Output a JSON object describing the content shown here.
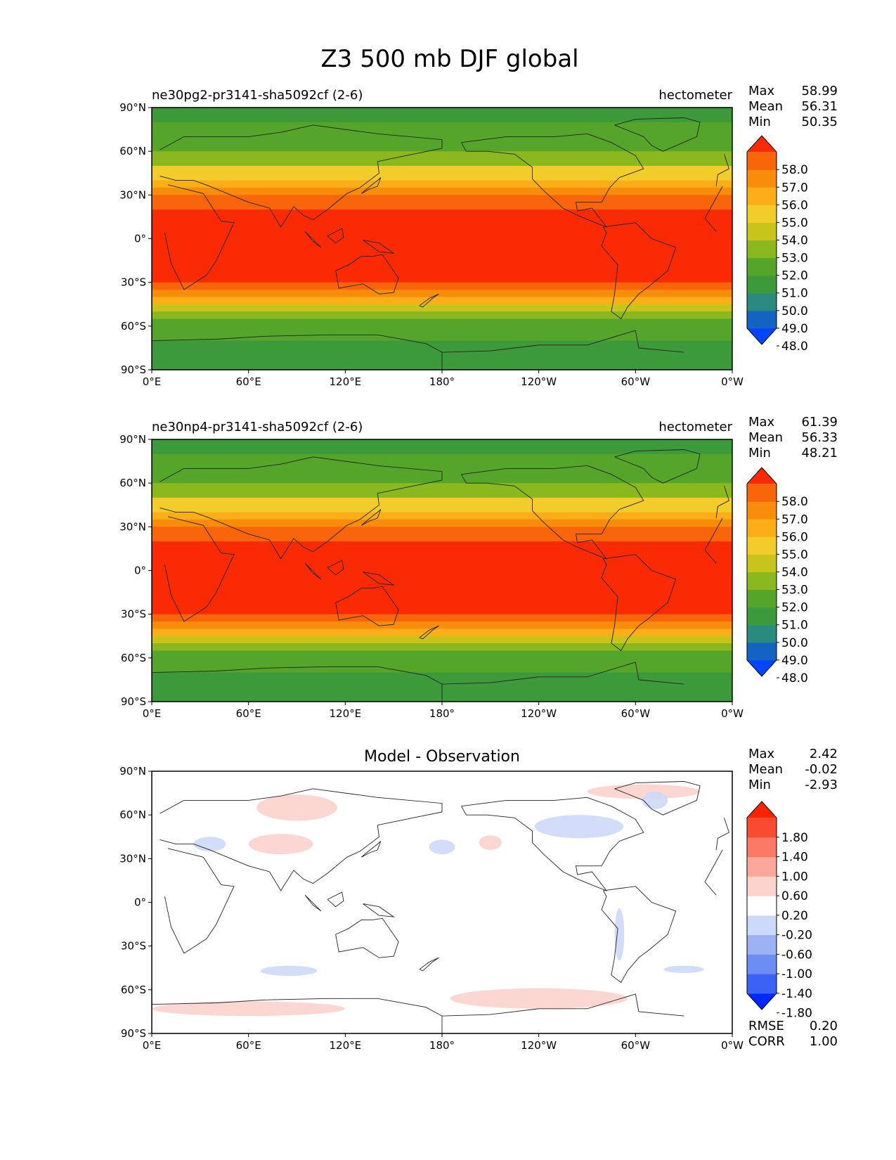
{
  "figure": {
    "title": "Z3 500 mb DJF global"
  },
  "chart_data": [
    {
      "type": "heatmap",
      "title": "ne30pg2-pr3141-sha5092cf (2-6)",
      "units": "hectometer",
      "stats": {
        "max_label": "Max",
        "max": "58.99",
        "mean_label": "Mean",
        "mean": "56.31",
        "min_label": "Min",
        "min": "50.35"
      },
      "xticks": [
        "0°E",
        "60°E",
        "120°E",
        "180°",
        "120°W",
        "60°W",
        "0°W"
      ],
      "yticks": [
        "90°N",
        "60°N",
        "30°N",
        "0°",
        "30°S",
        "60°S",
        "90°S"
      ],
      "colorbar": {
        "labels": [
          "58.0",
          "57.0",
          "56.0",
          "55.0",
          "54.0",
          "53.0",
          "52.0",
          "51.0",
          "50.0",
          "49.0",
          "48.0"
        ],
        "colors": [
          "#0045ff",
          "#1463c2",
          "#2a8a80",
          "#3c9a3a",
          "#55a52a",
          "#8ab81e",
          "#c8c41c",
          "#f2cc2a",
          "#fcae18",
          "#f98c0a",
          "#f9650a",
          "#fa2b04"
        ]
      },
      "zonal_profile": {
        "lat": [
          90,
          80,
          70,
          60,
          50,
          40,
          35,
          30,
          20,
          10,
          0,
          -10,
          -20,
          -30,
          -35,
          -40,
          -45,
          -50,
          -55,
          -60,
          -70,
          -80,
          -90
        ],
        "value": [
          50.6,
          50.9,
          51.3,
          52.1,
          53.5,
          55.4,
          56.3,
          57.2,
          58.3,
          58.6,
          58.6,
          58.6,
          58.4,
          58.0,
          57.0,
          55.7,
          54.3,
          53.0,
          52.2,
          51.5,
          50.8,
          50.6,
          50.6
        ]
      }
    },
    {
      "type": "heatmap",
      "title": "ne30np4-pr3141-sha5092cf (2-6)",
      "units": "hectometer",
      "stats": {
        "max_label": "Max",
        "max": "61.39",
        "mean_label": "Mean",
        "mean": "56.33",
        "min_label": "Min",
        "min": "48.21"
      },
      "xticks": [
        "0°E",
        "60°E",
        "120°E",
        "180°",
        "120°W",
        "60°W",
        "0°W"
      ],
      "yticks": [
        "90°N",
        "60°N",
        "30°N",
        "0°",
        "30°S",
        "60°S",
        "90°S"
      ],
      "colorbar": {
        "labels": [
          "58.0",
          "57.0",
          "56.0",
          "55.0",
          "54.0",
          "53.0",
          "52.0",
          "51.0",
          "50.0",
          "49.0",
          "48.0"
        ],
        "colors": [
          "#0045ff",
          "#1463c2",
          "#2a8a80",
          "#3c9a3a",
          "#55a52a",
          "#8ab81e",
          "#c8c41c",
          "#f2cc2a",
          "#fcae18",
          "#f98c0a",
          "#f9650a",
          "#fa2b04"
        ]
      },
      "zonal_profile": {
        "lat": [
          90,
          80,
          70,
          60,
          50,
          40,
          35,
          30,
          20,
          10,
          0,
          -10,
          -20,
          -30,
          -35,
          -40,
          -45,
          -50,
          -55,
          -60,
          -70,
          -80,
          -90
        ],
        "value": [
          50.7,
          51.0,
          51.4,
          52.2,
          53.6,
          55.5,
          56.4,
          57.3,
          58.3,
          58.6,
          58.6,
          58.6,
          58.4,
          58.0,
          57.0,
          55.7,
          54.3,
          53.0,
          52.2,
          51.5,
          51.0,
          50.8,
          50.7
        ]
      }
    },
    {
      "type": "heatmap",
      "title": "Model - Observation",
      "stats": {
        "max_label": "Max",
        "max": "2.42",
        "mean_label": "Mean",
        "mean": "-0.02",
        "min_label": "Min",
        "min": "-2.93"
      },
      "metrics": {
        "rmse_label": "RMSE",
        "rmse": "0.20",
        "corr_label": "CORR",
        "corr": "1.00"
      },
      "xticks": [
        "0°E",
        "60°E",
        "120°E",
        "180°",
        "120°W",
        "60°W",
        "0°W"
      ],
      "yticks": [
        "90°N",
        "60°N",
        "30°N",
        "0°",
        "30°S",
        "60°S",
        "90°S"
      ],
      "colorbar": {
        "labels": [
          "1.80",
          "1.40",
          "1.00",
          "0.60",
          "0.20",
          "-0.20",
          "-0.60",
          "-1.00",
          "-1.40",
          "-1.80"
        ],
        "colors": [
          "#0028ff",
          "#3a62f5",
          "#6c8df2",
          "#9db2f5",
          "#cdd9f8",
          "#ffffff",
          "#fcd3cd",
          "#fba79b",
          "#fa7a66",
          "#f94b30",
          "#fa2400"
        ]
      },
      "anomalies": [
        {
          "kind": "negative",
          "lon": 36,
          "lat": 40,
          "lon_span": 20,
          "lat_span": 10
        },
        {
          "kind": "positive",
          "lon": 80,
          "lat": 40,
          "lon_span": 40,
          "lat_span": 14
        },
        {
          "kind": "positive",
          "lon": 90,
          "lat": 65,
          "lon_span": 50,
          "lat_span": 18
        },
        {
          "kind": "negative",
          "lon": 180,
          "lat": 38,
          "lon_span": 16,
          "lat_span": 10
        },
        {
          "kind": "positive",
          "lon": 210,
          "lat": 41,
          "lon_span": 14,
          "lat_span": 10
        },
        {
          "kind": "negative",
          "lon": 265,
          "lat": 52,
          "lon_span": 55,
          "lat_span": 16
        },
        {
          "kind": "positive",
          "lon": 305,
          "lat": 76,
          "lon_span": 70,
          "lat_span": 10
        },
        {
          "kind": "negative",
          "lon": 312,
          "lat": 70,
          "lon_span": 16,
          "lat_span": 12
        },
        {
          "kind": "negative",
          "lon": 290,
          "lat": -22,
          "lon_span": 6,
          "lat_span": 36
        },
        {
          "kind": "negative",
          "lon": 85,
          "lat": -47,
          "lon_span": 35,
          "lat_span": 7
        },
        {
          "kind": "negative",
          "lon": 330,
          "lat": -46,
          "lon_span": 25,
          "lat_span": 5
        },
        {
          "kind": "positive",
          "lon": 240,
          "lat": -66,
          "lon_span": 110,
          "lat_span": 14
        },
        {
          "kind": "positive",
          "lon": 60,
          "lat": -73,
          "lon_span": 120,
          "lat_span": 10
        }
      ]
    }
  ]
}
